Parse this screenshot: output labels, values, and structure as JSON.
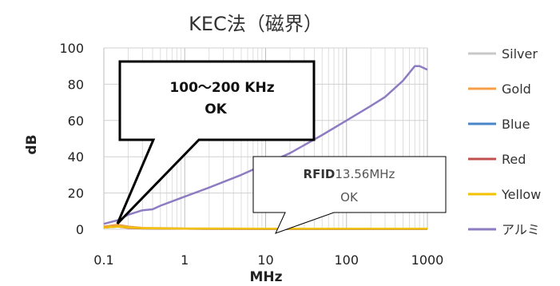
{
  "chart_data": {
    "type": "line",
    "title": "KEC法（磁界）",
    "xlabel": "MHz",
    "ylabel": "dB",
    "x_scale": "log",
    "xlim": [
      0.1,
      1000
    ],
    "ylim": [
      0,
      100
    ],
    "x_ticks": [
      "0.1",
      "1",
      "10",
      "100",
      "1000"
    ],
    "y_ticks": [
      "0",
      "20",
      "40",
      "60",
      "80",
      "100"
    ],
    "grid": true,
    "legend_position": "right",
    "series": [
      {
        "name": "Silver",
        "color": "#c8c8c8",
        "x": [
          0.1,
          0.15,
          0.2,
          0.3,
          1,
          10,
          100,
          1000
        ],
        "y": [
          1.5,
          2,
          1,
          0.5,
          0.3,
          0.2,
          0.2,
          0.2
        ]
      },
      {
        "name": "Gold",
        "color": "#f4a04a",
        "x": [
          0.1,
          0.15,
          0.2,
          0.3,
          1,
          10,
          100,
          1000
        ],
        "y": [
          1.5,
          2.5,
          1.5,
          0.8,
          0.4,
          0.3,
          0.3,
          0.3
        ]
      },
      {
        "name": "Blue",
        "color": "#4a86c8",
        "x": [
          0.1,
          0.15,
          0.2,
          0.3,
          1,
          10,
          100,
          1000
        ],
        "y": [
          1,
          1.5,
          1,
          0.5,
          0.3,
          0.2,
          0.2,
          0.2
        ]
      },
      {
        "name": "Red",
        "color": "#c0504d",
        "x": [
          0.1,
          0.15,
          0.2,
          0.3,
          1,
          10,
          100,
          1000
        ],
        "y": [
          1,
          1.5,
          0.8,
          0.5,
          0.3,
          0.2,
          0.2,
          0.2
        ]
      },
      {
        "name": "Yellow",
        "color": "#f2c200",
        "x": [
          0.1,
          0.15,
          0.2,
          0.3,
          1,
          10,
          100,
          1000
        ],
        "y": [
          1,
          1.5,
          1,
          0.6,
          0.4,
          0.3,
          0.3,
          0.3
        ]
      },
      {
        "name": "アルミ",
        "color": "#8e7cc3",
        "x": [
          0.1,
          0.15,
          0.2,
          0.3,
          0.4,
          0.5,
          1,
          2,
          5,
          10,
          20,
          50,
          100,
          200,
          300,
          500,
          700,
          800,
          1000
        ],
        "y": [
          3,
          5,
          8,
          10.5,
          11,
          13,
          18,
          23,
          30,
          36,
          42,
          52,
          60,
          68,
          73,
          82,
          90,
          90,
          88
        ]
      }
    ],
    "annotations": [
      {
        "lines": [
          "100〜200 KHz",
          "OK"
        ]
      },
      {
        "bold": "RFID",
        "rest": "13.56MHz",
        "line2": "OK"
      }
    ]
  }
}
